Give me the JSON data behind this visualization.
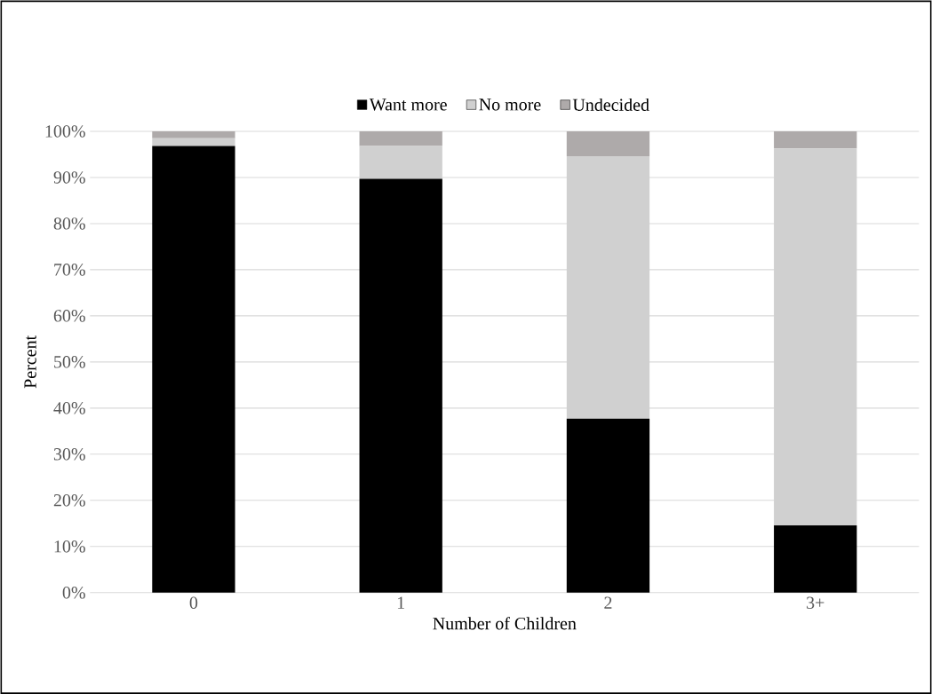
{
  "chart_data": {
    "type": "bar",
    "stacked": true,
    "xlabel": "Number of Children",
    "ylabel": "Percent",
    "categories": [
      "0",
      "1",
      "2",
      "3+"
    ],
    "series": [
      {
        "name": "Want more",
        "color": "#000000",
        "values": [
          96.8,
          89.7,
          37.7,
          14.6
        ]
      },
      {
        "name": "No more",
        "color": "#d0d0d0",
        "values": [
          1.7,
          7.1,
          56.9,
          81.7
        ]
      },
      {
        "name": "Undecided",
        "color": "#aeaaaa",
        "values": [
          1.5,
          3.2,
          5.4,
          3.7
        ]
      }
    ],
    "ylim": [
      0,
      100
    ],
    "yticks": [
      {
        "value": 0,
        "label": "0%"
      },
      {
        "value": 10,
        "label": "10%"
      },
      {
        "value": 20,
        "label": "20%"
      },
      {
        "value": 30,
        "label": "30%"
      },
      {
        "value": 40,
        "label": "40%"
      },
      {
        "value": 50,
        "label": "50%"
      },
      {
        "value": 60,
        "label": "60%"
      },
      {
        "value": 70,
        "label": "70%"
      },
      {
        "value": 80,
        "label": "80%"
      },
      {
        "value": 90,
        "label": "90%"
      },
      {
        "value": 100,
        "label": "100%"
      }
    ],
    "grid": "y",
    "legend": "top"
  }
}
